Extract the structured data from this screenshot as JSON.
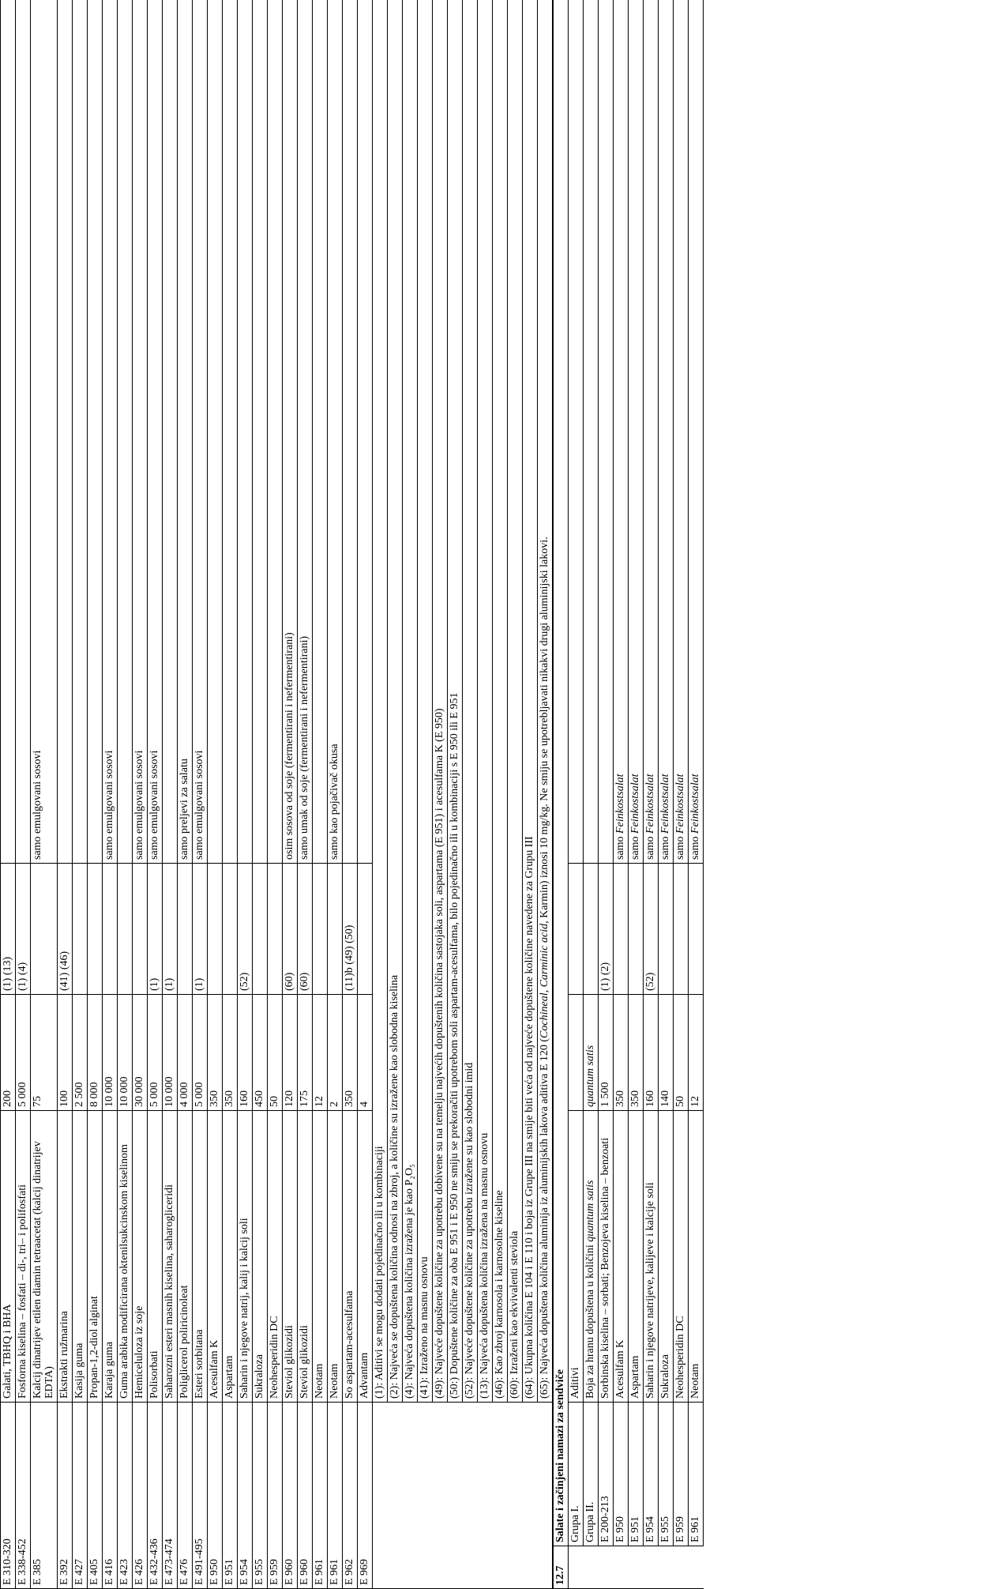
{
  "upper_rows": [
    [
      "E 310-320",
      "Galati, TBHQ i BHA",
      "200",
      "(1) (13)",
      null
    ],
    [
      "E 338-452",
      "Fosforna kiselina – fosfati – di-, tri– i polifosfati",
      "5 000",
      "(1) (4)",
      null
    ],
    [
      "E 385",
      "Kalcij dinatrijev etilen diamin tetraacetat (kalcij dinatrijev EDTA)",
      "75",
      null,
      "samo emulgovani sosovi"
    ],
    [
      "E 392",
      "Ekstrakti ružmarina",
      "100",
      "(41) (46)",
      null
    ],
    [
      "E 427",
      "Kasija guma",
      "2 500",
      null,
      null
    ],
    [
      "E 405",
      "Propan-1,2-diol alginat",
      "8 000",
      null,
      null
    ],
    [
      "E 416",
      "Karaja guma",
      "10 000",
      null,
      "samo emulgovani sosovi"
    ],
    [
      "E 423",
      "Guma arabika modificirana oktenilsukcinskom kiselinom",
      "10 000",
      null,
      null
    ],
    [
      "E 426",
      "Hemiceluloza iz soje",
      "30 000",
      null,
      "samo emulgovani sosovi"
    ],
    [
      "E 432-436",
      "Polisorbati",
      "5 000",
      "(1)",
      "samo emulgovani sosovi"
    ],
    [
      "E 473-474",
      "Saharozni esteri masnih kiselina, saharogliceridi",
      "10 000",
      "(1)",
      null
    ],
    [
      "E 476",
      "Poliglicerol poliricinoleat",
      "4 000",
      null,
      "samo preljevi za salatu"
    ],
    [
      "E 491-495",
      "Esteri sorbitana",
      "5 000",
      "(1)",
      "samo emulgovani sosovi"
    ],
    [
      "E 950",
      "Acesulfam K",
      "350",
      null,
      null
    ],
    [
      "E 951",
      "Aspartam",
      "350",
      null,
      null
    ],
    [
      "E 954",
      "Saharin i njegove natrij, kalij i kalcij soli",
      "160",
      "(52)",
      null
    ],
    [
      "E 955",
      "Sukraloza",
      "450",
      null,
      null
    ],
    [
      "E 959",
      "Neohesperidin DC",
      "50",
      null,
      null
    ],
    [
      "E 960",
      "Steviol glikozidi",
      "120",
      "(60)",
      "osim sosova od soje (fermentirani i nefermentirani)"
    ],
    [
      "E 960",
      "Steviol glikozidi",
      "175",
      "(60)",
      "samo umak od soje (fermentirani i nefermentirani)"
    ],
    [
      "E 961",
      "Neotam",
      "12",
      null,
      null
    ],
    [
      "E 961",
      "Neotam",
      "2",
      null,
      "samo kao pojačivač okusa"
    ],
    [
      "E 962",
      "So aspartam-acesulfama",
      "350",
      "(11)b (49) (50)",
      null
    ],
    [
      "E 969",
      "Advantam",
      "4",
      null,
      null
    ]
  ],
  "footnotes": [
    "(1): Aditivi se mogu dodati pojedinačno ili u kombinaciji",
    "(2): Najveća se dopuštena količina odnosi na zbroj, a količine su izražene kao slobodna kiselina",
    "(4): Najveća dopuštena količina izražena je kao P₂O₅",
    "(41): Izraženo na masnu osnovu",
    "(49): Najveće dopuštene količine za upotrebu dobivene su na temelju najvećih dopuštenih količina sastojaka soli, aspartama (E 951) i acesulfama K (E 950)",
    "(50:) Dopuštene količine za oba E 951 i E 950 ne smiju se prekoračiti upotrebom soli aspartam-acesulfama, bilo pojedinačno ili u kombinaciji s E 950 ili E 951",
    "(52): Najveće dopuštene količine za upotrebu izražene su kao slobodni imid",
    "(13): Najveća dopuštena količina izražena na masnu osnovu",
    "(46): Kao zbroj karnosola i karnosolne kiseline",
    "(60): Izraženi kao ekvivalenti steviola",
    "(64): Ukupna količina E 104 i E 110 i boja iz Grupe III na smije biti veća od najveće dopuštene količine navedene za Grupu III",
    [
      "(65): Najveća dopuštena količina aluminija iz aluminijskih lakova aditiva E 120 (",
      {
        "italic": "Cochineal, Carminic acid,"
      },
      " Karmin) iznosi 10 mg/kg. Ne smiju se upotrebljavati nikakvi drugi aluminijski lakovi."
    ]
  ],
  "category": {
    "number": "12.7",
    "title": "Salate i začinjeni namazi za sendviče"
  },
  "lower_rows": [
    [
      "Grupa I.",
      "Aditivi",
      null,
      null,
      null
    ],
    [
      "Grupa II.",
      [
        "Boja za hranu dopuštena u količini ",
        {
          "italic": "quantum satis"
        }
      ],
      [
        {
          "italic": "quantum satis"
        }
      ],
      null,
      null
    ],
    [
      "E 200-213",
      "Sorbinska kiselina – sorbati; Benzojeva kiselina – benzoati",
      "1 500",
      "(1) (2)",
      null
    ],
    [
      "E 950",
      "Acesulfam K",
      "350",
      null,
      [
        "samo ",
        {
          "italic": "Feinkostsalat"
        }
      ]
    ],
    [
      "E 951",
      "Aspartam",
      "350",
      null,
      [
        "samo ",
        {
          "italic": "Feinkostsalat"
        }
      ]
    ],
    [
      "E 954",
      "Saharin i njegove natrijeve, kalijeve i kalcije soli",
      "160",
      "(52)",
      [
        "samo ",
        {
          "italic": "Feinkostsalat"
        }
      ]
    ],
    [
      "E 955",
      "Sukraloza",
      "140",
      null,
      [
        "samo ",
        {
          "italic": "Feinkostsalat"
        }
      ]
    ],
    [
      "E 959",
      "Neohesperidin DC",
      "50",
      null,
      [
        "samo ",
        {
          "italic": "Feinkostsalat"
        }
      ]
    ],
    [
      "E 961",
      "Neotam",
      "12",
      null,
      [
        "samo ",
        {
          "italic": "Feinkostsalat"
        }
      ]
    ]
  ]
}
